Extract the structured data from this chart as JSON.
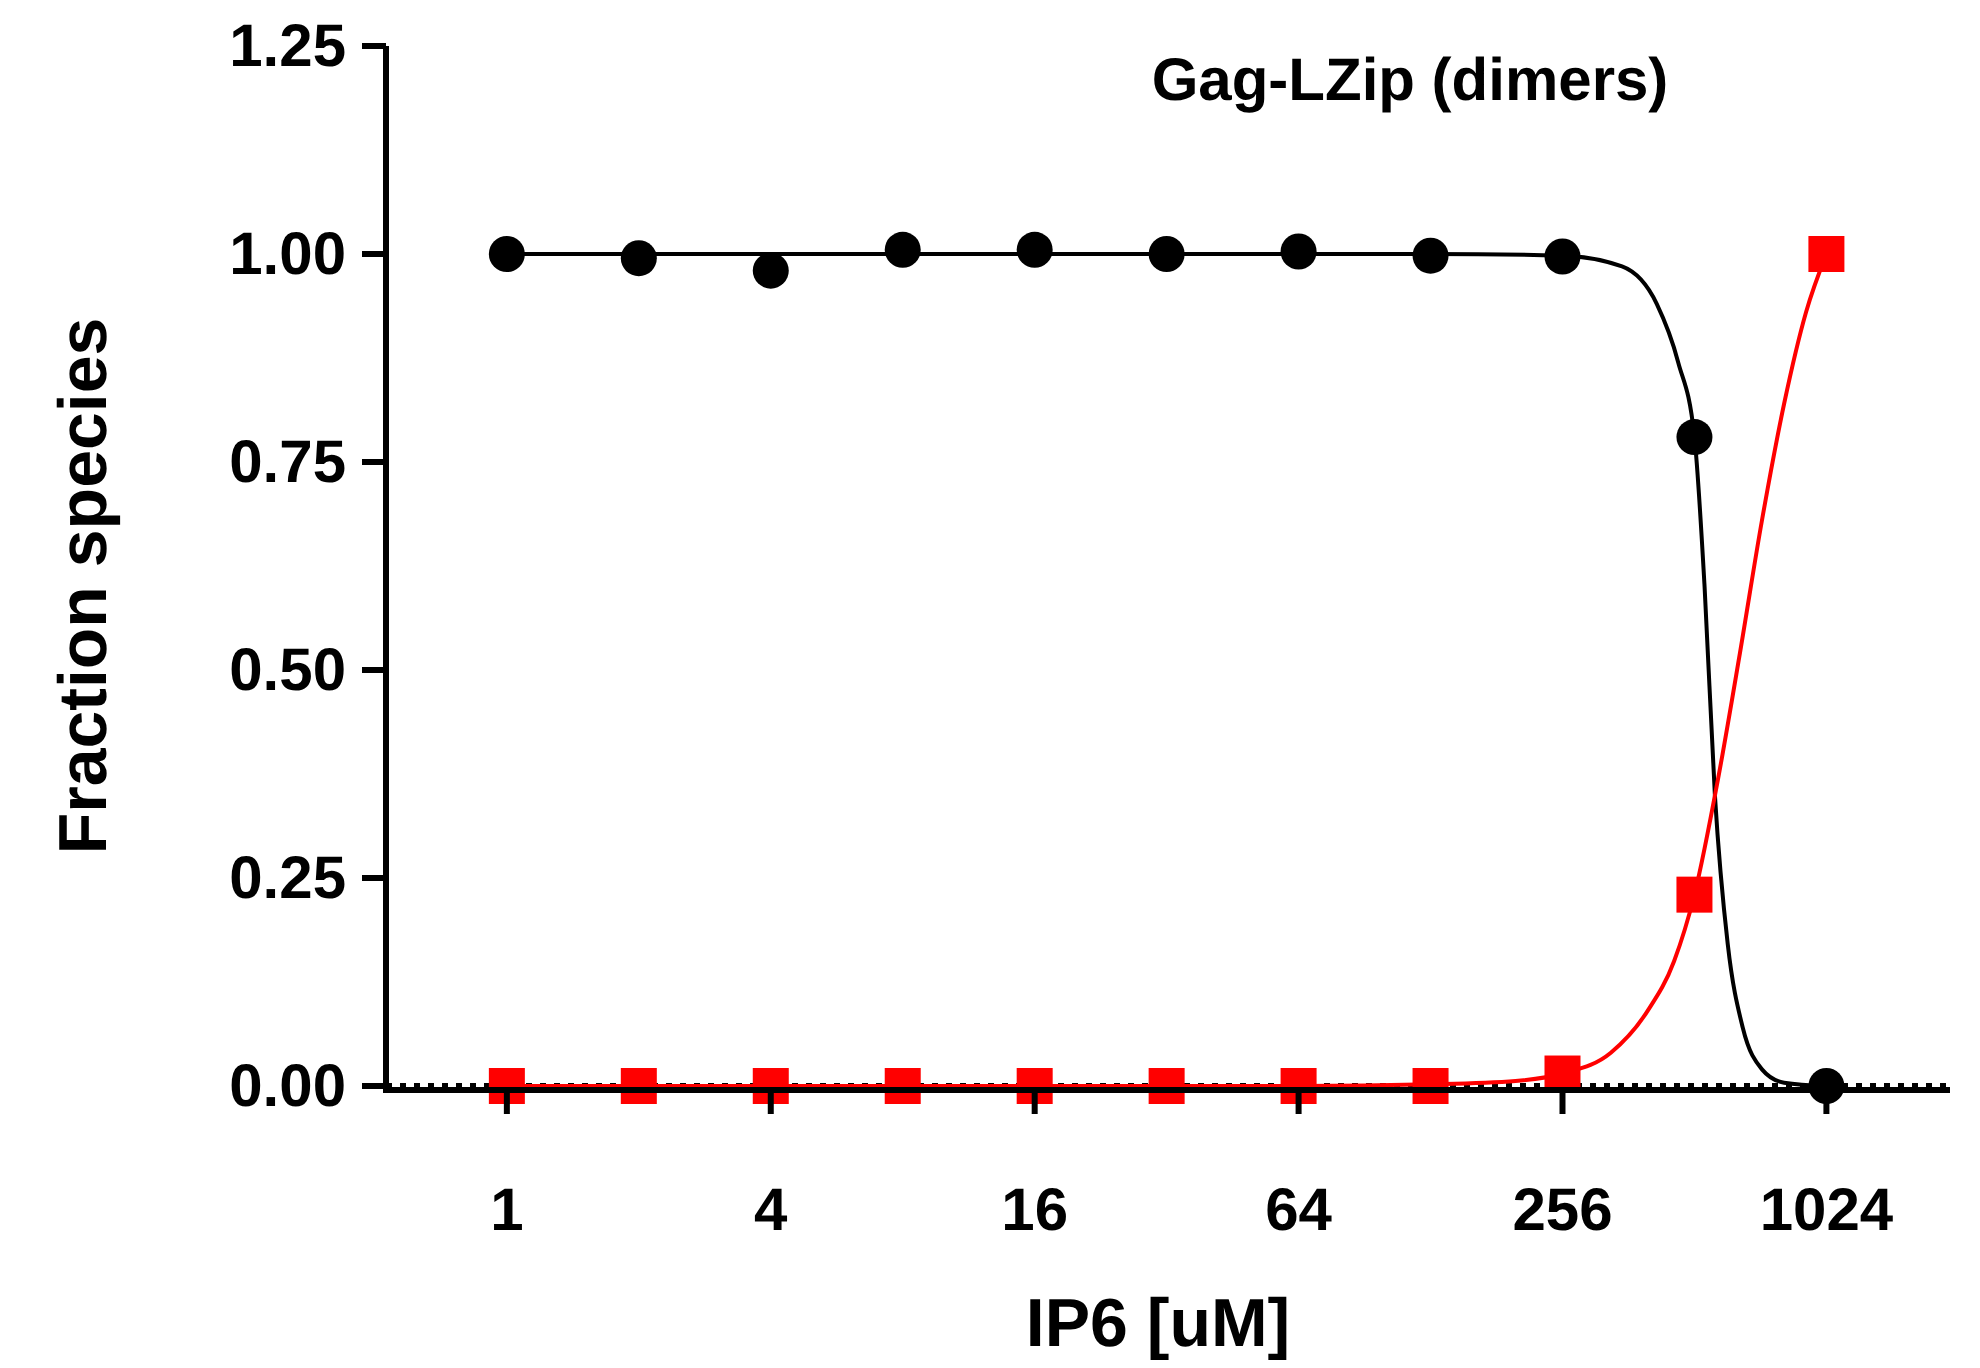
{
  "chart_data": {
    "type": "scatter",
    "title": "Gag-LZip (dimers)",
    "xlabel": "IP6 [uM]",
    "ylabel": "Fraction species",
    "log": "x",
    "grid": false,
    "xlim": [
      0.53,
      1960
    ],
    "xticks": [
      1,
      4,
      16,
      64,
      256,
      1024
    ],
    "ylim": [
      0,
      1.25
    ],
    "yticks": [
      {
        "value": 0,
        "label": "0.00"
      },
      {
        "value": 0.25,
        "label": "0.25"
      },
      {
        "value": 0.5,
        "label": "0.50"
      },
      {
        "value": 0.75,
        "label": "0.75"
      },
      {
        "value": 1,
        "label": "1.00"
      },
      {
        "value": 1.25,
        "label": "1.25"
      }
    ],
    "ref_lines": [
      {
        "axis": "y",
        "value": 0,
        "line_style": "dotted",
        "color": "#000000"
      }
    ],
    "series": [
      {
        "type": "line",
        "color": "#000000",
        "marker": "none",
        "x": [
          1,
          16,
          128,
          256,
          350,
          420,
          470,
          512,
          540,
          570,
          610,
          660,
          730,
          820,
          1024
        ],
        "values": [
          1,
          1,
          1,
          0.998,
          0.985,
          0.94,
          0.87,
          0.78,
          0.6,
          0.35,
          0.17,
          0.07,
          0.02,
          0.004,
          0
        ]
      },
      {
        "type": "line",
        "color": "#ff0000",
        "marker": "none",
        "x": [
          1,
          32,
          64,
          128,
          200,
          256,
          330,
          400,
          460,
          512,
          580,
          650,
          730,
          820,
          920,
          1024
        ],
        "values": [
          0,
          0,
          0,
          0.002,
          0.006,
          0.015,
          0.04,
          0.09,
          0.15,
          0.23,
          0.37,
          0.52,
          0.68,
          0.82,
          0.93,
          1
        ]
      },
      {
        "color": "#000000",
        "marker": "circle",
        "x": [
          1,
          2,
          4,
          8,
          16,
          32,
          64,
          128,
          256,
          512,
          1024
        ],
        "values": [
          1,
          0.995,
          0.98,
          1.005,
          1.005,
          1,
          1.003,
          0.998,
          0.997,
          0.78,
          0
        ]
      },
      {
        "color": "#ff0000",
        "marker": "square",
        "x": [
          1,
          2,
          4,
          8,
          16,
          32,
          64,
          128,
          256,
          512,
          1024
        ],
        "values": [
          0,
          0,
          0,
          0,
          0,
          0,
          0,
          0,
          0.015,
          0.23,
          1
        ]
      }
    ]
  }
}
